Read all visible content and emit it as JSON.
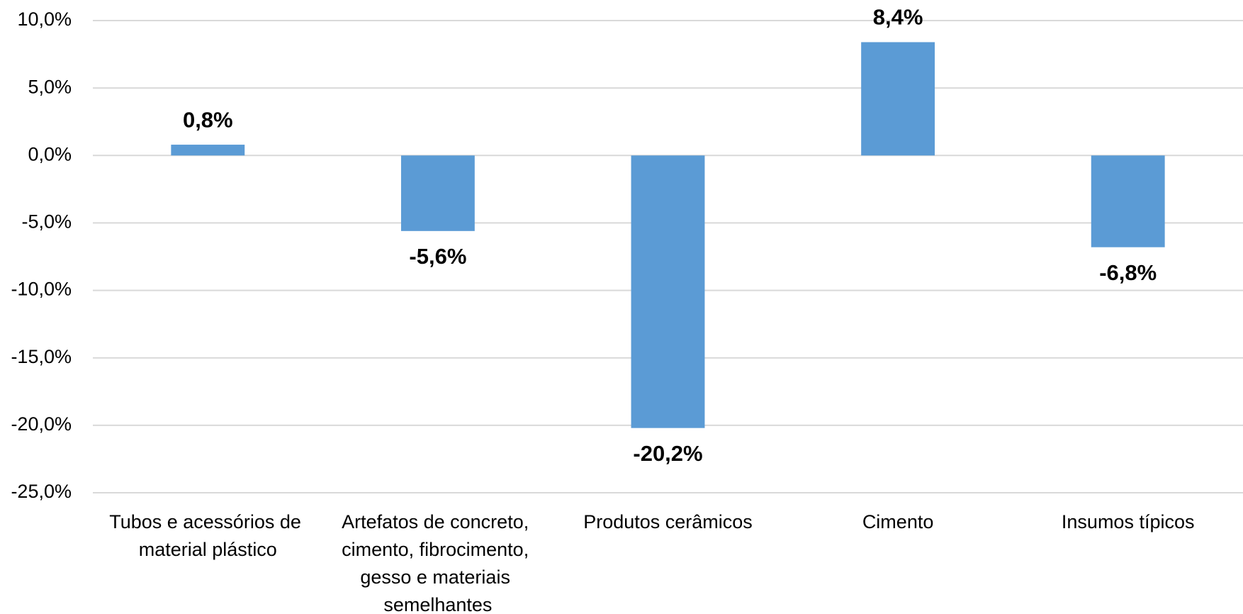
{
  "chart_data": {
    "type": "bar",
    "categories": [
      "Tubos e acessórios de material plástico",
      "Artefatos de concreto, cimento, fibrocimento, gesso e materiais semelhantes",
      "Produtos cerâmicos",
      "Cimento",
      "Insumos típicos"
    ],
    "values": [
      0.8,
      -5.6,
      -20.2,
      8.4,
      -6.8
    ],
    "value_labels": [
      "0,8%",
      "-5,6%",
      "-20,2%",
      "8,4%",
      "-6,8%"
    ],
    "color": "#5b9bd5",
    "ylim": [
      -25,
      10
    ],
    "yticks": [
      {
        "value": 10,
        "label": "10,0%"
      },
      {
        "value": 5,
        "label": "5,0%"
      },
      {
        "value": 0,
        "label": "0,0%"
      },
      {
        "value": -5,
        "label": "-5,0%"
      },
      {
        "value": -10,
        "label": "-10,0%"
      },
      {
        "value": -15,
        "label": "-15,0%"
      },
      {
        "value": -20,
        "label": "-20,0%"
      },
      {
        "value": -25,
        "label": "-25,0%"
      }
    ],
    "grid": true
  }
}
